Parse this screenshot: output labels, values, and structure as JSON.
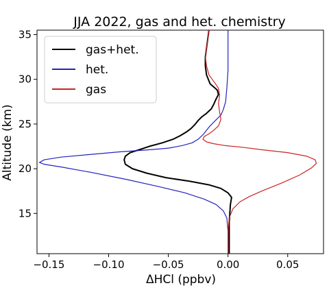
{
  "chart_data": {
    "type": "line",
    "title": "JJA 2022,  gas and het. chemistry",
    "xlabel": "ΔHCl (ppbv)",
    "ylabel": "Altitude (km)",
    "xlim": [
      -0.16,
      0.08
    ],
    "ylim": [
      10.5,
      35.5
    ],
    "xticks": [
      -0.15,
      -0.1,
      -0.05,
      0.0,
      0.05
    ],
    "xtick_labels": [
      "−0.15",
      "−0.10",
      "−0.05",
      "0.00",
      "0.05"
    ],
    "yticks": [
      15,
      20,
      25,
      30,
      35
    ],
    "ytick_labels": [
      "15",
      "20",
      "25",
      "30",
      "35"
    ],
    "grid": false,
    "legend_position": "upper-left",
    "series": [
      {
        "name": "gas+het.",
        "color": "#000000",
        "points": [
          [
            0.001,
            10.5
          ],
          [
            0.001,
            12
          ],
          [
            0.001,
            14
          ],
          [
            0.002,
            16
          ],
          [
            0.003,
            16.8
          ],
          [
            0.0,
            17.3
          ],
          [
            -0.006,
            17.8
          ],
          [
            -0.016,
            18.2
          ],
          [
            -0.032,
            18.6
          ],
          [
            -0.052,
            19.0
          ],
          [
            -0.068,
            19.5
          ],
          [
            -0.08,
            20.0
          ],
          [
            -0.086,
            20.5
          ],
          [
            -0.087,
            21.0
          ],
          [
            -0.086,
            21.4
          ],
          [
            -0.082,
            21.8
          ],
          [
            -0.075,
            22.1
          ],
          [
            -0.066,
            22.5
          ],
          [
            -0.055,
            22.9
          ],
          [
            -0.046,
            23.3
          ],
          [
            -0.04,
            23.7
          ],
          [
            -0.035,
            24.1
          ],
          [
            -0.031,
            24.5
          ],
          [
            -0.028,
            24.9
          ],
          [
            -0.025,
            25.4
          ],
          [
            -0.022,
            25.8
          ],
          [
            -0.018,
            26.2
          ],
          [
            -0.014,
            26.7
          ],
          [
            -0.012,
            27.2
          ],
          [
            -0.01,
            27.8
          ],
          [
            -0.008,
            28.3
          ],
          [
            -0.009,
            28.8
          ],
          [
            -0.015,
            29.5
          ],
          [
            -0.018,
            30.5
          ],
          [
            -0.019,
            31.5
          ],
          [
            -0.019,
            32.5
          ],
          [
            -0.018,
            33.5
          ],
          [
            -0.017,
            34.5
          ],
          [
            -0.016,
            35.5
          ]
        ]
      },
      {
        "name": "het.",
        "color": "#2222bb",
        "points": [
          [
            0.0,
            10.5
          ],
          [
            0.0,
            13
          ],
          [
            -0.001,
            14.5
          ],
          [
            -0.004,
            15.3
          ],
          [
            -0.01,
            16.0
          ],
          [
            -0.02,
            16.6
          ],
          [
            -0.036,
            17.3
          ],
          [
            -0.058,
            18.0
          ],
          [
            -0.085,
            18.8
          ],
          [
            -0.115,
            19.6
          ],
          [
            -0.14,
            20.2
          ],
          [
            -0.154,
            20.5
          ],
          [
            -0.158,
            20.7
          ],
          [
            -0.154,
            21.0
          ],
          [
            -0.14,
            21.3
          ],
          [
            -0.115,
            21.6
          ],
          [
            -0.09,
            21.9
          ],
          [
            -0.068,
            22.1
          ],
          [
            -0.05,
            22.3
          ],
          [
            -0.038,
            22.6
          ],
          [
            -0.03,
            22.9
          ],
          [
            -0.025,
            23.3
          ],
          [
            -0.021,
            23.8
          ],
          [
            -0.018,
            24.3
          ],
          [
            -0.015,
            24.8
          ],
          [
            -0.012,
            25.2
          ],
          [
            -0.009,
            25.6
          ],
          [
            -0.006,
            26.0
          ],
          [
            -0.004,
            26.6
          ],
          [
            -0.002,
            27.5
          ],
          [
            -0.001,
            29
          ],
          [
            0.0,
            31
          ],
          [
            0.0,
            33
          ],
          [
            0.0,
            35.5
          ]
        ]
      },
      {
        "name": "gas",
        "color": "#cc2222",
        "points": [
          [
            0.0,
            10.5
          ],
          [
            0.0,
            13
          ],
          [
            0.001,
            14.5
          ],
          [
            0.004,
            15.5
          ],
          [
            0.01,
            16.3
          ],
          [
            0.018,
            16.9
          ],
          [
            0.03,
            17.6
          ],
          [
            0.045,
            18.4
          ],
          [
            0.06,
            19.3
          ],
          [
            0.07,
            20.1
          ],
          [
            0.074,
            20.6
          ],
          [
            0.073,
            21.0
          ],
          [
            0.066,
            21.4
          ],
          [
            0.05,
            21.8
          ],
          [
            0.03,
            22.1
          ],
          [
            0.012,
            22.4
          ],
          [
            -0.003,
            22.6
          ],
          [
            -0.012,
            22.8
          ],
          [
            -0.018,
            23.0
          ],
          [
            -0.021,
            23.3
          ],
          [
            -0.02,
            23.6
          ],
          [
            -0.016,
            23.9
          ],
          [
            -0.012,
            24.3
          ],
          [
            -0.008,
            24.8
          ],
          [
            -0.006,
            25.5
          ],
          [
            -0.007,
            26.3
          ],
          [
            -0.008,
            27.3
          ],
          [
            -0.007,
            28.2
          ],
          [
            -0.008,
            29.0
          ],
          [
            -0.011,
            29.6
          ],
          [
            -0.016,
            30.5
          ],
          [
            -0.018,
            31.5
          ],
          [
            -0.019,
            32.5
          ],
          [
            -0.018,
            33.5
          ],
          [
            -0.017,
            34.5
          ],
          [
            -0.016,
            35.5
          ]
        ]
      }
    ]
  }
}
